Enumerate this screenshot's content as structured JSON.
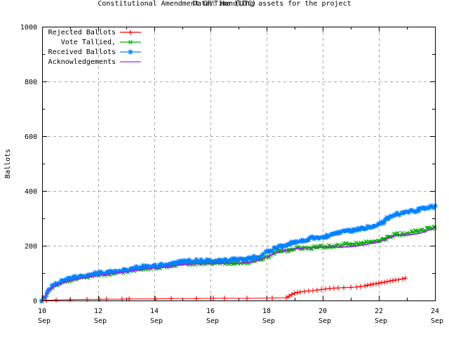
{
  "window": {
    "background": "#ffffff",
    "border_color": "#000000"
  },
  "chart_data": {
    "type": "line",
    "title": "Constitutional Amendment GR: Handling assets for the project",
    "xlabel": "Date/Time (UTC)",
    "ylabel": "Ballots",
    "ylim": [
      0,
      1000
    ],
    "xlim_days": [
      10,
      24
    ],
    "month": "Sep",
    "y_ticks": [
      {
        "v": 0,
        "label": "0"
      },
      {
        "v": 200,
        "label": "200"
      },
      {
        "v": 400,
        "label": "400"
      },
      {
        "v": 600,
        "label": "600"
      },
      {
        "v": 800,
        "label": "800"
      },
      {
        "v": 1000,
        "label": "1000"
      }
    ],
    "y_minor_values": [
      100,
      300,
      500,
      700,
      900
    ],
    "x_ticks": [
      {
        "day": 10,
        "line1": "10",
        "line2": "Sep"
      },
      {
        "day": 12,
        "line1": "12",
        "line2": "Sep"
      },
      {
        "day": 14,
        "line1": "14",
        "line2": "Sep"
      },
      {
        "day": 16,
        "line1": "16",
        "line2": "Sep"
      },
      {
        "day": 18,
        "line1": "18",
        "line2": "Sep"
      },
      {
        "day": 20,
        "line1": "20",
        "line2": "Sep"
      },
      {
        "day": 22,
        "line1": "22",
        "line2": "Sep"
      },
      {
        "day": 24,
        "line1": "24",
        "line2": "Sep"
      }
    ],
    "x_minor_days": [
      11,
      13,
      15,
      17,
      19,
      21,
      23
    ],
    "grid": {
      "show": true,
      "color": "#a8a8a8",
      "dash": "4,4"
    },
    "legend": {
      "position": "top-left"
    },
    "marker_step_days": 0.05,
    "marker_jitter_px": 2.2,
    "series": [
      {
        "name": "Rejected Ballots",
        "color": "#ff0000",
        "marker": "plus",
        "marker_mode": "points",
        "line_width": 1,
        "points": [
          [
            10,
            0
          ],
          [
            10.15,
            1
          ],
          [
            10.5,
            2
          ],
          [
            11,
            3
          ],
          [
            11.6,
            4
          ],
          [
            12.05,
            4
          ],
          [
            12.3,
            5
          ],
          [
            12.85,
            5
          ],
          [
            13.1,
            6
          ],
          [
            14.05,
            6
          ],
          [
            14.6,
            7
          ],
          [
            15.5,
            7
          ],
          [
            16.1,
            8
          ],
          [
            16.5,
            8
          ],
          [
            17.3,
            8
          ],
          [
            18.2,
            9
          ],
          [
            18.7,
            10
          ],
          [
            18.8,
            16
          ],
          [
            18.9,
            22
          ],
          [
            19,
            27
          ],
          [
            19.1,
            29
          ],
          [
            19.2,
            31
          ],
          [
            19.35,
            33
          ],
          [
            19.5,
            35
          ],
          [
            19.65,
            36
          ],
          [
            19.8,
            38
          ],
          [
            19.95,
            40
          ],
          [
            20.1,
            42
          ],
          [
            20.25,
            44
          ],
          [
            20.4,
            45
          ],
          [
            20.55,
            46
          ],
          [
            20.75,
            47
          ],
          [
            21,
            48
          ],
          [
            21.2,
            49
          ],
          [
            21.35,
            51
          ],
          [
            21.5,
            53
          ],
          [
            21.6,
            56
          ],
          [
            21.7,
            58
          ],
          [
            21.8,
            60
          ],
          [
            21.9,
            61
          ],
          [
            22,
            63
          ],
          [
            22.1,
            65
          ],
          [
            22.2,
            67
          ],
          [
            22.3,
            69
          ],
          [
            22.4,
            71
          ],
          [
            22.5,
            73
          ],
          [
            22.6,
            75
          ],
          [
            22.7,
            76
          ],
          [
            22.85,
            79
          ],
          [
            22.95,
            82
          ]
        ]
      },
      {
        "name": "Vote Tallied,",
        "color": "#00b000",
        "marker": "cross",
        "marker_mode": "dense",
        "line_width": 1.1,
        "points": [
          [
            10,
            0
          ],
          [
            10.1,
            12
          ],
          [
            10.2,
            30
          ],
          [
            10.35,
            48
          ],
          [
            10.5,
            57
          ],
          [
            10.75,
            66
          ],
          [
            11,
            74
          ],
          [
            11.25,
            80
          ],
          [
            11.5,
            85
          ],
          [
            11.75,
            89
          ],
          [
            12,
            93
          ],
          [
            12.5,
            100
          ],
          [
            13,
            107
          ],
          [
            13.35,
            114
          ],
          [
            13.7,
            118
          ],
          [
            14,
            120
          ],
          [
            14.5,
            125
          ],
          [
            14.85,
            132
          ],
          [
            15.2,
            135
          ],
          [
            15.6,
            136
          ],
          [
            16,
            137
          ],
          [
            16.5,
            137
          ],
          [
            17,
            138
          ],
          [
            17.4,
            141
          ],
          [
            17.7,
            148
          ],
          [
            18,
            161
          ],
          [
            18.3,
            172
          ],
          [
            18.6,
            180
          ],
          [
            18.9,
            187
          ],
          [
            19.2,
            191
          ],
          [
            19.5,
            193
          ],
          [
            19.8,
            196
          ],
          [
            20.1,
            197
          ],
          [
            20.4,
            199
          ],
          [
            20.7,
            203
          ],
          [
            21,
            207
          ],
          [
            21.3,
            209
          ],
          [
            21.6,
            212
          ],
          [
            21.9,
            216
          ],
          [
            22.1,
            220
          ],
          [
            22.25,
            226
          ],
          [
            22.4,
            233
          ],
          [
            22.55,
            239
          ],
          [
            22.8,
            242
          ],
          [
            23,
            246
          ],
          [
            23.2,
            249
          ],
          [
            23.45,
            252
          ],
          [
            23.65,
            258
          ],
          [
            23.85,
            263
          ],
          [
            24,
            270
          ]
        ]
      },
      {
        "name": "Received Ballots",
        "color": "#0080ff",
        "marker": "asterisk",
        "marker_mode": "dense",
        "line_width": 1.1,
        "points": [
          [
            10,
            0
          ],
          [
            10.1,
            15
          ],
          [
            10.2,
            35
          ],
          [
            10.35,
            52
          ],
          [
            10.5,
            62
          ],
          [
            10.75,
            72
          ],
          [
            11,
            80
          ],
          [
            11.25,
            86
          ],
          [
            11.5,
            91
          ],
          [
            11.75,
            95
          ],
          [
            12,
            99
          ],
          [
            12.5,
            106
          ],
          [
            13,
            112
          ],
          [
            13.35,
            120
          ],
          [
            13.7,
            124
          ],
          [
            14,
            126
          ],
          [
            14.5,
            131
          ],
          [
            14.85,
            140
          ],
          [
            15.2,
            143
          ],
          [
            15.6,
            145
          ],
          [
            16,
            146
          ],
          [
            16.5,
            147
          ],
          [
            17,
            150
          ],
          [
            17.4,
            153
          ],
          [
            17.7,
            161
          ],
          [
            18,
            176
          ],
          [
            18.3,
            190
          ],
          [
            18.6,
            200
          ],
          [
            18.9,
            210
          ],
          [
            19.2,
            218
          ],
          [
            19.5,
            225
          ],
          [
            19.8,
            230
          ],
          [
            20.1,
            235
          ],
          [
            20.4,
            242
          ],
          [
            20.7,
            250
          ],
          [
            21,
            256
          ],
          [
            21.3,
            262
          ],
          [
            21.6,
            268
          ],
          [
            21.9,
            275
          ],
          [
            22.1,
            283
          ],
          [
            22.25,
            295
          ],
          [
            22.4,
            306
          ],
          [
            22.55,
            313
          ],
          [
            22.8,
            319
          ],
          [
            23,
            324
          ],
          [
            23.2,
            327
          ],
          [
            23.45,
            332
          ],
          [
            23.65,
            337
          ],
          [
            23.85,
            341
          ],
          [
            24,
            345
          ]
        ]
      },
      {
        "name": "Acknowledgements",
        "color": "#a020f0",
        "marker": "none",
        "marker_mode": "none",
        "line_width": 1.6,
        "points": [
          [
            10,
            0
          ],
          [
            10.15,
            22
          ],
          [
            10.3,
            42
          ],
          [
            10.5,
            55
          ],
          [
            10.75,
            64
          ],
          [
            11,
            72
          ],
          [
            11.5,
            83
          ],
          [
            12,
            91
          ],
          [
            12.5,
            98
          ],
          [
            13,
            105
          ],
          [
            13.5,
            112
          ],
          [
            14,
            118
          ],
          [
            14.5,
            123
          ],
          [
            14.9,
            130
          ],
          [
            15.3,
            133
          ],
          [
            16,
            135
          ],
          [
            16.5,
            135
          ],
          [
            17,
            136
          ],
          [
            17.5,
            140
          ],
          [
            17.8,
            150
          ],
          [
            18.1,
            164
          ],
          [
            18.4,
            176
          ],
          [
            18.7,
            184
          ],
          [
            19,
            188
          ],
          [
            19.3,
            191
          ],
          [
            19.6,
            193
          ],
          [
            20,
            194
          ],
          [
            20.5,
            195
          ],
          [
            21,
            196
          ],
          [
            21.3,
            200
          ],
          [
            21.6,
            206
          ],
          [
            21.9,
            212
          ],
          [
            22.1,
            217
          ],
          [
            22.3,
            225
          ],
          [
            22.5,
            234
          ],
          [
            22.7,
            238
          ],
          [
            23.1,
            240
          ],
          [
            23.4,
            244
          ],
          [
            23.6,
            250
          ],
          [
            23.8,
            258
          ],
          [
            24,
            268
          ]
        ]
      }
    ]
  }
}
